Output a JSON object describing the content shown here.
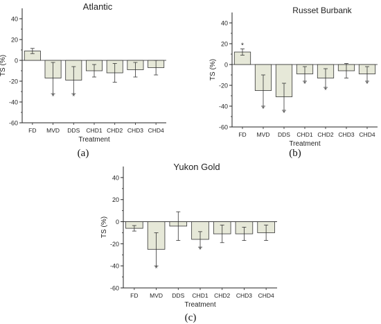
{
  "colors": {
    "bar_fill": "#e6e8d8",
    "bar_stroke": "#333333",
    "axis": "#222222",
    "error": "#333333"
  },
  "chart_data": [
    {
      "type": "bar",
      "panel_label": "(a)",
      "title": "Atlantic",
      "xlabel": "Treatment",
      "ylabel": "TS (%)",
      "ylim": [
        -60,
        50
      ],
      "yticks": [
        -60,
        -40,
        -20,
        0,
        20,
        40
      ],
      "grid": false,
      "categories": [
        "FD",
        "MVD",
        "DDS",
        "CHD1",
        "CHD2",
        "CHD3",
        "CHD4"
      ],
      "values": [
        9,
        -17,
        -19,
        -10,
        -12,
        -9,
        -7
      ],
      "errors": [
        2.5,
        15,
        13,
        6,
        9,
        7,
        7
      ],
      "significance": [
        "",
        "*",
        "*",
        "",
        "",
        "",
        ""
      ]
    },
    {
      "type": "bar",
      "panel_label": "(b)",
      "title": "Russet Burbank",
      "xlabel": "Treatment",
      "ylabel": "TS (%)",
      "ylim": [
        -60,
        50
      ],
      "yticks": [
        -60,
        -40,
        -20,
        0,
        20,
        40
      ],
      "grid": false,
      "categories": [
        "FD",
        "MVD",
        "DDS",
        "CHD1",
        "CHD2",
        "CHD3",
        "CHD4"
      ],
      "values": [
        12,
        -25,
        -31,
        -9,
        -13,
        -6,
        -9
      ],
      "errors": [
        3,
        15,
        13,
        7,
        9,
        7,
        7
      ],
      "significance": [
        "*",
        "*",
        "*",
        "*",
        "*",
        "",
        "*"
      ]
    },
    {
      "type": "bar",
      "panel_label": "(c)",
      "title": "Yukon Gold",
      "xlabel": "Treatment",
      "ylabel": "TS (%)",
      "ylim": [
        -60,
        50
      ],
      "yticks": [
        -60,
        -40,
        -20,
        0,
        20,
        40
      ],
      "grid": false,
      "categories": [
        "FD",
        "MVD",
        "DDS",
        "CHD1",
        "CHD2",
        "CHD3",
        "CHD4"
      ],
      "values": [
        -6,
        -25,
        -4,
        -16,
        -11,
        -11,
        -10
      ],
      "errors": [
        2.5,
        15,
        13,
        7,
        8,
        6,
        7
      ],
      "significance": [
        "",
        "*",
        "",
        "*",
        "",
        "",
        ""
      ]
    }
  ]
}
